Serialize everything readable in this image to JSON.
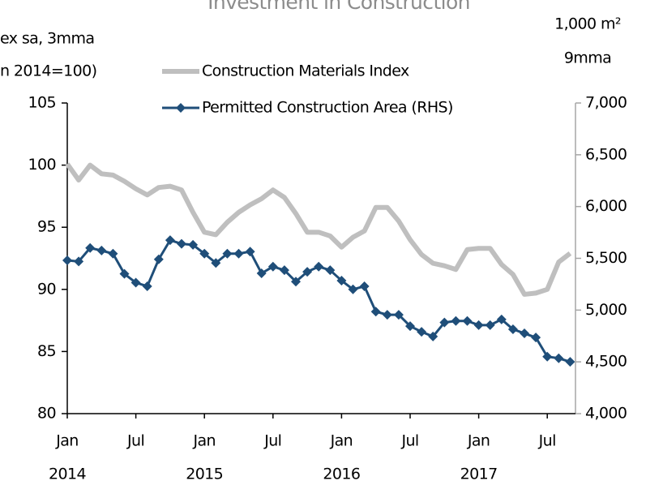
{
  "chart_data": {
    "type": "line",
    "title": "Investment in Construction",
    "y_label_lines": [
      "ex sa, 3mma",
      "n 2014=100)"
    ],
    "y2_label_lines": [
      "1,000 m²",
      "9mma"
    ],
    "categories": [
      "Jan",
      null,
      null,
      null,
      null,
      null,
      "Jul",
      null,
      null,
      null,
      null,
      null,
      "Jan",
      null,
      null,
      null,
      null,
      null,
      "Jul",
      null,
      null,
      null,
      null,
      null,
      "Jan",
      null,
      null,
      null,
      null,
      null,
      "Jul",
      null,
      null,
      null,
      null,
      null,
      "Jan",
      null,
      null,
      null,
      null,
      null,
      "Jul",
      null,
      null
    ],
    "category_groups": [
      "2014",
      "2015",
      "2016",
      "2017"
    ],
    "ylim": [
      80,
      105
    ],
    "yticks": [
      80,
      85,
      90,
      95,
      100,
      105
    ],
    "y2lim": [
      4000,
      7000
    ],
    "y2ticks": [
      {
        "value": 4000,
        "label": "4,000"
      },
      {
        "value": 4500,
        "label": "4,500"
      },
      {
        "value": 5000,
        "label": "5,000"
      },
      {
        "value": 5500,
        "label": "5,500"
      },
      {
        "value": 6000,
        "label": "6,000"
      },
      {
        "value": 6500,
        "label": "6,500"
      },
      {
        "value": 7000,
        "label": "7,000"
      }
    ],
    "series": [
      {
        "name": "Construction Materials Index",
        "color": "#bfbfbf",
        "marker": "none",
        "values": [
          100.1,
          98.8,
          100.0,
          99.3,
          99.2,
          98.7,
          98.1,
          97.6,
          98.2,
          98.3,
          98.0,
          96.2,
          94.6,
          94.4,
          95.4,
          96.2,
          96.8,
          97.3,
          98.0,
          97.4,
          96.1,
          94.6,
          94.6,
          94.3,
          93.4,
          94.2,
          94.7,
          96.6,
          96.6,
          95.5,
          94.0,
          92.8,
          92.1,
          91.9,
          91.6,
          93.2,
          93.3,
          93.3,
          92.0,
          91.2,
          89.6,
          89.7,
          90.0,
          92.2,
          92.9
        ]
      },
      {
        "name": "Permitted Construction Area (RHS)",
        "color": "#1f4e79",
        "marker": "diamond",
        "axis": "y2",
        "values": [
          5480,
          5470,
          5600,
          5575,
          5545,
          5350,
          5265,
          5230,
          5490,
          5675,
          5640,
          5630,
          5545,
          5455,
          5545,
          5545,
          5565,
          5355,
          5420,
          5385,
          5275,
          5370,
          5420,
          5385,
          5285,
          5200,
          5230,
          4985,
          4955,
          4955,
          4845,
          4790,
          4745,
          4880,
          4895,
          4895,
          4855,
          4855,
          4910,
          4815,
          4775,
          4735,
          4550,
          4535,
          4500
        ]
      }
    ]
  }
}
